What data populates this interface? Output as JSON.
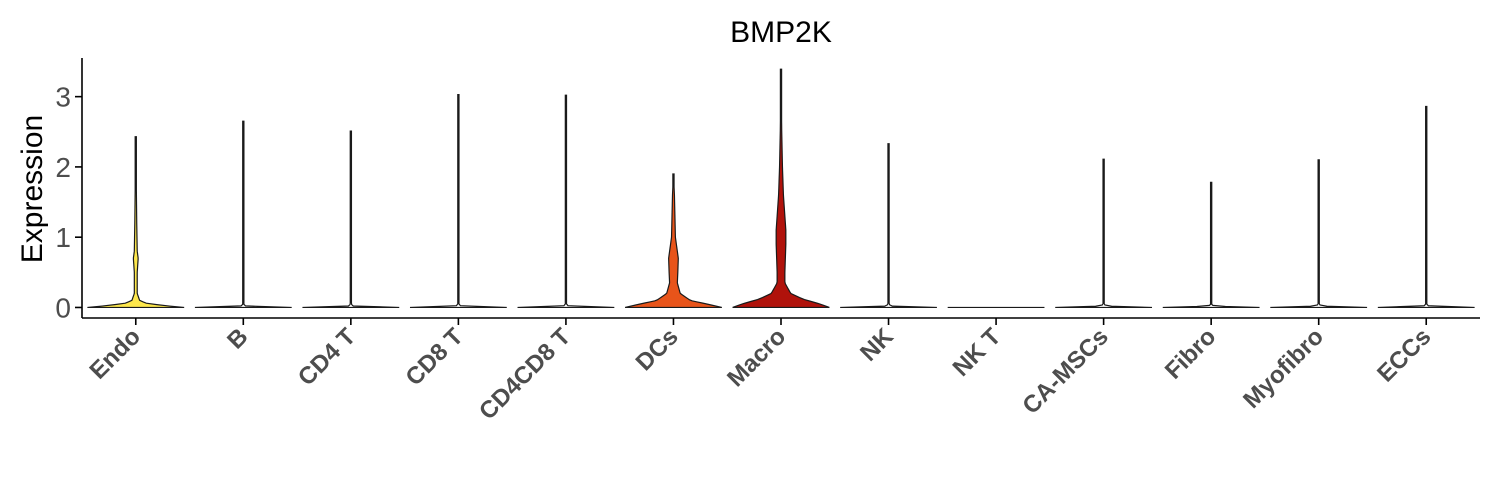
{
  "chart_data": {
    "type": "violin",
    "title": "BMP2K",
    "xlabel": "",
    "ylabel": "Expression",
    "ylim": [
      -0.15,
      3.55
    ],
    "yticks": [
      0,
      1,
      2,
      3
    ],
    "categories": [
      "Endo",
      "B",
      "CD4 T",
      "CD8 T",
      "CD4CD8 T",
      "DCs",
      "Macro",
      "NK",
      "NK T",
      "CA-MSCs",
      "Fibro",
      "Myofibro",
      "ECCs"
    ],
    "colors": [
      "#fde74c",
      "#ffffff",
      "#ffffff",
      "#ffffff",
      "#ffffff",
      "#e8541a",
      "#b0120b",
      "#ffffff",
      "#ffffff",
      "#ffffff",
      "#ffffff",
      "#ffffff",
      "#ffffff"
    ],
    "max_values": [
      2.43,
      2.65,
      2.51,
      3.03,
      3.02,
      1.9,
      3.39,
      2.33,
      0.0,
      2.11,
      1.78,
      2.1,
      2.86
    ],
    "density_profiles": [
      [
        [
          0,
          1.0
        ],
        [
          0.03,
          0.55
        ],
        [
          0.06,
          0.22
        ],
        [
          0.1,
          0.08
        ],
        [
          0.2,
          0.03
        ],
        [
          0.5,
          0.03
        ],
        [
          0.7,
          0.05
        ],
        [
          0.8,
          0.03
        ],
        [
          1.2,
          0.02
        ],
        [
          1.5,
          0.015
        ],
        [
          2.43,
          0.0
        ]
      ],
      [
        [
          0,
          1.0
        ],
        [
          0.02,
          0.05
        ],
        [
          0.05,
          0.004
        ],
        [
          2.65,
          0.0
        ]
      ],
      [
        [
          0,
          1.0
        ],
        [
          0.02,
          0.05
        ],
        [
          0.05,
          0.004
        ],
        [
          2.51,
          0.0
        ]
      ],
      [
        [
          0,
          1.0
        ],
        [
          0.02,
          0.05
        ],
        [
          0.05,
          0.004
        ],
        [
          3.03,
          0.0
        ]
      ],
      [
        [
          0,
          1.0
        ],
        [
          0.02,
          0.05
        ],
        [
          0.05,
          0.004
        ],
        [
          3.02,
          0.0
        ]
      ],
      [
        [
          0,
          1.0
        ],
        [
          0.04,
          0.75
        ],
        [
          0.1,
          0.35
        ],
        [
          0.2,
          0.14
        ],
        [
          0.35,
          0.08
        ],
        [
          0.5,
          0.09
        ],
        [
          0.7,
          0.1
        ],
        [
          0.85,
          0.07
        ],
        [
          1.0,
          0.04
        ],
        [
          1.3,
          0.03
        ],
        [
          1.6,
          0.02
        ],
        [
          1.9,
          0.0
        ]
      ],
      [
        [
          0,
          1.0
        ],
        [
          0.05,
          0.8
        ],
        [
          0.12,
          0.45
        ],
        [
          0.2,
          0.2
        ],
        [
          0.35,
          0.08
        ],
        [
          0.5,
          0.08
        ],
        [
          0.7,
          0.09
        ],
        [
          0.9,
          0.1
        ],
        [
          1.1,
          0.1
        ],
        [
          1.3,
          0.08
        ],
        [
          1.6,
          0.05
        ],
        [
          2.0,
          0.03
        ],
        [
          2.5,
          0.015
        ],
        [
          3.39,
          0.0
        ]
      ],
      [
        [
          0,
          1.0
        ],
        [
          0.02,
          0.05
        ],
        [
          0.05,
          0.004
        ],
        [
          2.33,
          0.0
        ]
      ],
      [
        [
          0,
          1.0
        ],
        [
          0.0,
          0.0
        ]
      ],
      [
        [
          0,
          1.0
        ],
        [
          0.02,
          0.05
        ],
        [
          0.05,
          0.004
        ],
        [
          2.11,
          0.0
        ]
      ],
      [
        [
          0,
          1.0
        ],
        [
          0.02,
          0.05
        ],
        [
          0.05,
          0.004
        ],
        [
          1.78,
          0.0
        ]
      ],
      [
        [
          0,
          1.0
        ],
        [
          0.02,
          0.05
        ],
        [
          0.05,
          0.004
        ],
        [
          2.1,
          0.0
        ]
      ],
      [
        [
          0,
          1.0
        ],
        [
          0.02,
          0.05
        ],
        [
          0.05,
          0.004
        ],
        [
          2.86,
          0.0
        ]
      ]
    ],
    "grid": false,
    "legend": "none"
  }
}
